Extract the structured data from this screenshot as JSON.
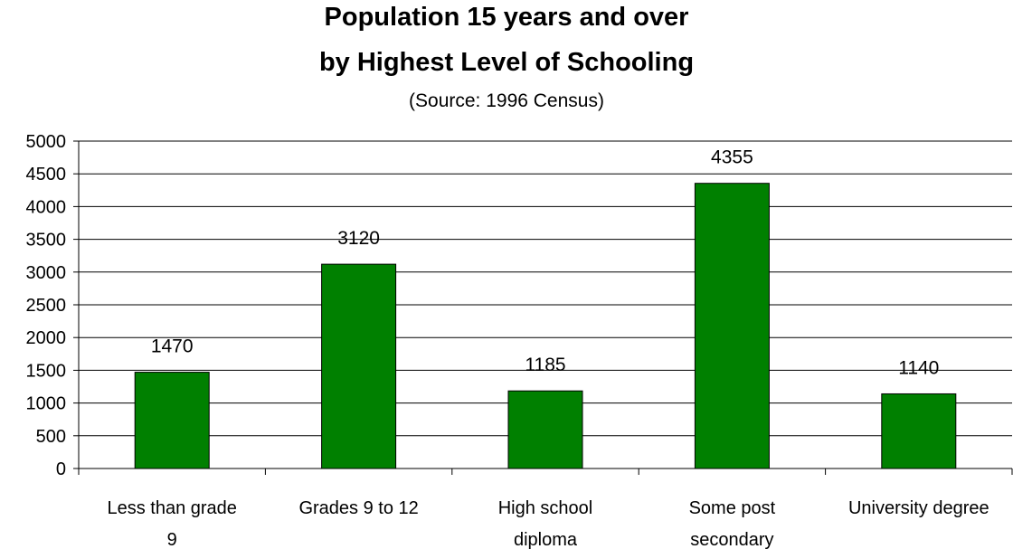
{
  "chart_data": {
    "type": "bar",
    "title": "Population 15 years and over",
    "title_line2": "by Highest Level of Schooling",
    "subtitle": "(Source: 1996 Census)",
    "xlabel": "",
    "ylabel": "",
    "categories": [
      [
        "Less than grade",
        "9"
      ],
      [
        "Grades 9 to 12"
      ],
      [
        "High school",
        "diploma"
      ],
      [
        "Some post",
        "secondary"
      ],
      [
        "University degree"
      ]
    ],
    "values": [
      1470,
      3120,
      1185,
      4355,
      1140
    ],
    "data_labels": [
      "1470",
      "3120",
      "1185",
      "4355",
      "1140"
    ],
    "ylim": [
      0,
      5000
    ],
    "yticks": [
      0,
      500,
      1000,
      1500,
      2000,
      2500,
      3000,
      3500,
      4000,
      4500,
      5000
    ],
    "grid": true,
    "legend": "none",
    "colors": {
      "bar": "#008000",
      "bar_stroke": "#000000",
      "grid": "#000000"
    }
  }
}
